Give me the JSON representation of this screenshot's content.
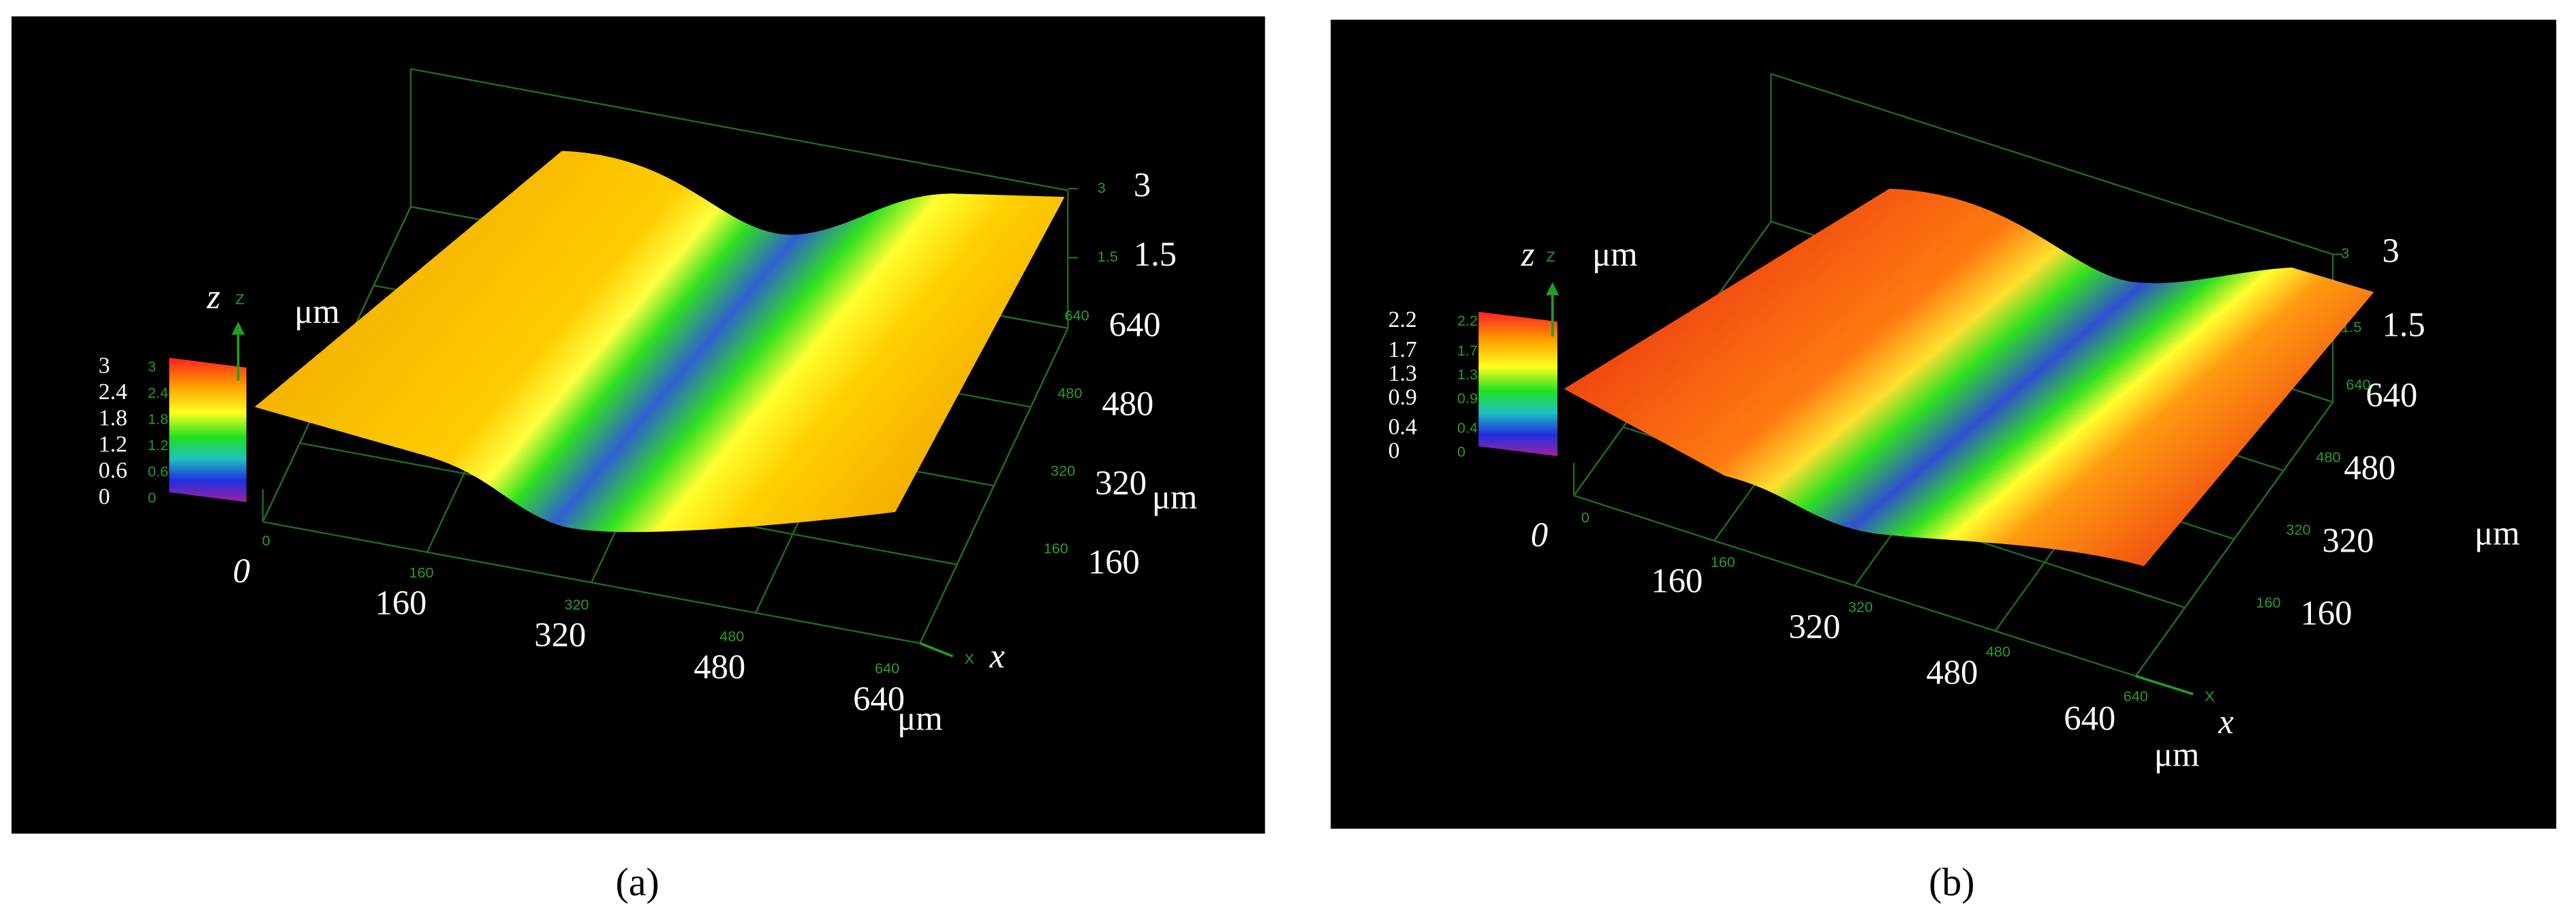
{
  "chart_data": [
    {
      "type": "surface",
      "panel_label": "(a)",
      "z_label": "z",
      "z_axis_letter": "Z",
      "z_unit": "μm",
      "x_label": "x",
      "x_axis_letter": "X",
      "x_unit": "μm",
      "y_unit": "μm",
      "xlim": [
        0,
        640
      ],
      "xticks": [
        0,
        160,
        320,
        480,
        640
      ],
      "ylim": [
        0,
        640
      ],
      "yticks": [
        160,
        320,
        480,
        640
      ],
      "zlim": [
        0,
        3
      ],
      "zticks": [
        1.5,
        3
      ],
      "colorbar_lim": [
        0,
        3
      ],
      "colorbar_ticks": [
        3,
        2.4,
        1.8,
        1.2,
        0.6,
        0
      ]
    },
    {
      "type": "surface",
      "panel_label": "(b)",
      "z_label": "z",
      "z_axis_letter": "Z",
      "z_unit": "μm",
      "x_label": "x",
      "x_axis_letter": "X",
      "x_unit": "μm",
      "y_unit": "μm",
      "xlim": [
        0,
        640
      ],
      "xticks": [
        0,
        160,
        320,
        480,
        640
      ],
      "ylim": [
        0,
        640
      ],
      "yticks": [
        160,
        320,
        480,
        640
      ],
      "zlim": [
        0,
        3
      ],
      "zticks": [
        1.5,
        3
      ],
      "colorbar_lim": [
        0,
        2.2
      ],
      "colorbar_ticks": [
        2.2,
        1.7,
        1.3,
        0.9,
        0.4,
        0
      ]
    }
  ]
}
